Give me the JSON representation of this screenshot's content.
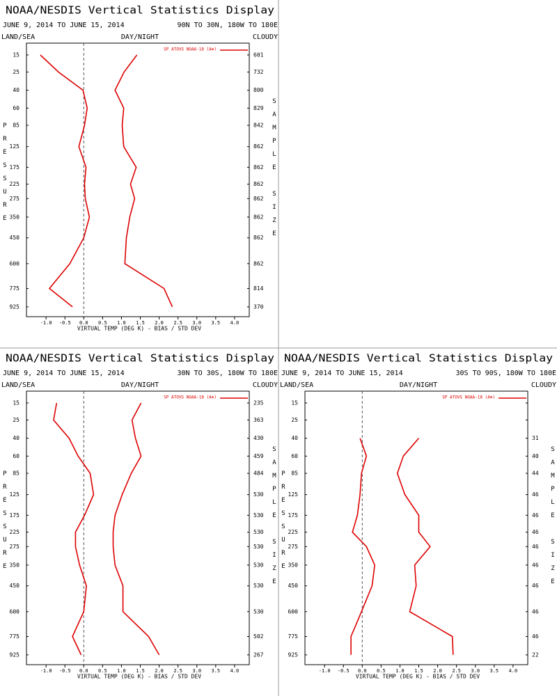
{
  "chart_data": [
    {
      "type": "line",
      "title": "NOAA/NESDIS Vertical Statistics Display",
      "subtitle": "JUNE 9, 2014 TO JUNE 15, 2014",
      "region": "90N TO 30N, 180W TO 180E",
      "land_sea": "LAND/SEA",
      "day_night": "DAY/NIGHT",
      "cloudy": "CLOUDY",
      "ylabel": "PRESSURE",
      "y2label": "SAMPLE SIZE",
      "xlabel": "VIRTUAL TEMP (DEG K) - BIAS / STD DEV",
      "categories": [
        15,
        25,
        40,
        60,
        85,
        125,
        175,
        225,
        275,
        350,
        450,
        600,
        775,
        925
      ],
      "series": [
        {
          "name": "SP ATOVS NOAA-18 (A⊕)",
          "color": "#dd0000",
          "values": [
            1.41,
            1.07,
            0.83,
            1.06,
            1.02,
            1.06,
            1.39,
            1.24,
            1.35,
            1.22,
            1.13,
            1.09,
            2.13,
            2.35
          ]
        },
        {
          "color": "#dd0000",
          "values": [
            -1.15,
            -0.67,
            -0.02,
            0.09,
            0.02,
            -0.13,
            0.06,
            0.02,
            0.04,
            0.15,
            0.0,
            -0.37,
            -0.91,
            -0.3
          ]
        }
      ],
      "sample_size": [
        601,
        732,
        800,
        829,
        842,
        862,
        862,
        862,
        862,
        862,
        862,
        862,
        814,
        370
      ],
      "xlim": [
        -1.52,
        4.39
      ],
      "xticks": [
        {
          "value": -1,
          "label": "-1.0"
        },
        -0.5,
        {
          "value": 0,
          "label": "0.0"
        },
        0.5,
        {
          "value": 1,
          "label": "1.0"
        },
        1.5,
        {
          "value": 2,
          "label": "2.0"
        },
        2.5,
        {
          "value": 3,
          "label": "3.0"
        },
        3.5,
        {
          "value": 4,
          "label": "4.0"
        }
      ],
      "ylim": [
        10,
        1013
      ]
    },
    {
      "type": "line",
      "title": "NOAA/NESDIS Vertical Statistics Display",
      "subtitle": "JUNE 9, 2014 TO JUNE 15, 2014",
      "region": "30N TO 30S, 180W TO 180E",
      "land_sea": "LAND/SEA",
      "day_night": "DAY/NIGHT",
      "cloudy": "CLOUDY",
      "ylabel": "PRESSURE",
      "y2label": "SAMPLE SIZE",
      "xlabel": "VIRTUAL TEMP (DEG K) - BIAS / STD DEV",
      "categories": [
        15,
        25,
        40,
        60,
        85,
        125,
        175,
        225,
        275,
        350,
        450,
        600,
        775,
        925
      ],
      "series": [
        {
          "name": "SP ATOVS NOAA-18 (A⊕)",
          "color": "#dd0000",
          "values": [
            1.52,
            1.28,
            1.37,
            1.52,
            1.26,
            1.02,
            0.83,
            0.78,
            0.78,
            0.83,
            1.04,
            1.04,
            1.72,
            2.0
          ]
        },
        {
          "color": "#dd0000",
          "values": [
            -0.72,
            -0.8,
            -0.39,
            -0.15,
            0.17,
            0.26,
            0.02,
            -0.22,
            -0.22,
            -0.11,
            0.07,
            0.0,
            -0.3,
            -0.07
          ]
        }
      ],
      "sample_size": [
        235,
        363,
        430,
        459,
        484,
        530,
        530,
        530,
        530,
        530,
        530,
        530,
        502,
        267
      ],
      "xlim": [
        -1.52,
        4.39
      ],
      "xticks": [
        {
          "value": -1,
          "label": "-1.0"
        },
        -0.5,
        {
          "value": 0,
          "label": "0.0"
        },
        0.5,
        {
          "value": 1,
          "label": "1.0"
        },
        1.5,
        {
          "value": 2,
          "label": "2.0"
        },
        2.5,
        {
          "value": 3,
          "label": "3.0"
        },
        3.5,
        {
          "value": 4,
          "label": "4.0"
        }
      ],
      "ylim": [
        10,
        1013
      ]
    },
    {
      "type": "line",
      "title": "NOAA/NESDIS Vertical Statistics Display",
      "subtitle": "JUNE 9, 2014 TO JUNE 15, 2014",
      "region": "30S TO 90S, 180W TO 180E",
      "land_sea": "LAND/SEA",
      "day_night": "DAY/NIGHT",
      "cloudy": "CLOUDY",
      "ylabel": "PRESSURE",
      "y2label": "SAMPLE SIZE",
      "xlabel": "VIRTUAL TEMP (DEG K) - BIAS / STD DEV",
      "categories": [
        15,
        25,
        40,
        60,
        85,
        125,
        175,
        225,
        275,
        350,
        450,
        600,
        775,
        925
      ],
      "series": [
        {
          "name": "SP ATOVS NOAA-18 (A⊕)",
          "color": "#dd0000",
          "values": [
            null,
            null,
            1.5,
            1.09,
            0.93,
            1.13,
            1.5,
            1.5,
            1.8,
            1.39,
            1.43,
            1.26,
            2.39,
            2.41
          ]
        },
        {
          "color": "#dd0000",
          "values": [
            null,
            null,
            -0.06,
            0.11,
            -0.02,
            -0.06,
            -0.13,
            -0.26,
            0.11,
            0.33,
            0.26,
            -0.02,
            -0.3,
            -0.3
          ]
        }
      ],
      "sample_size": [
        null,
        null,
        31,
        40,
        44,
        46,
        46,
        46,
        46,
        46,
        46,
        46,
        46,
        22
      ],
      "xlim": [
        -1.52,
        4.39
      ],
      "xticks": [
        {
          "value": -1,
          "label": "-1.0"
        },
        -0.5,
        {
          "value": 0,
          "label": "0.0"
        },
        0.5,
        {
          "value": 1,
          "label": "1.0"
        },
        1.5,
        {
          "value": 2,
          "label": "2.0"
        },
        2.5,
        {
          "value": 3,
          "label": "3.0"
        },
        3.5,
        {
          "value": 4,
          "label": "4.0"
        }
      ],
      "ylim": [
        10,
        1013
      ]
    }
  ]
}
